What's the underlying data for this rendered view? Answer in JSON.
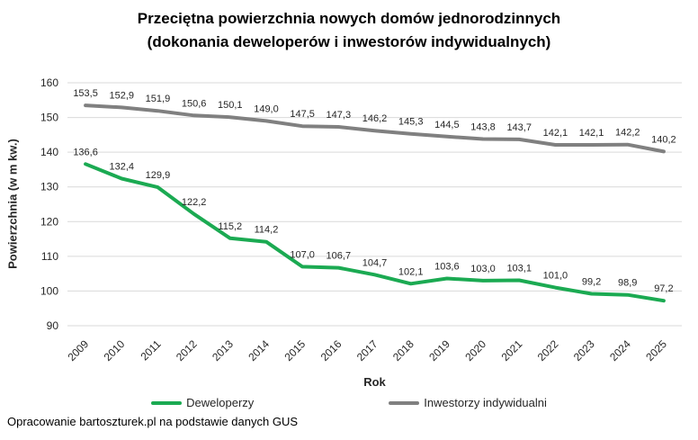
{
  "title": {
    "line1": "Przeciętna powierzchnia nowych domów jednorodzinnych",
    "line2": "(dokonania deweloperów i inwestorów indywidualnych)"
  },
  "footer": "Opracowanie bartoszturek.pl na podstawie danych GUS",
  "chart_data": {
    "type": "line",
    "x": [
      2009,
      2010,
      2011,
      2012,
      2013,
      2014,
      2015,
      2016,
      2017,
      2018,
      2019,
      2020,
      2021,
      2022,
      2023,
      2024,
      2025
    ],
    "series": [
      {
        "name": "Deweloperzy",
        "color": "#1BAA52",
        "values": [
          136.6,
          132.4,
          129.9,
          122.2,
          115.2,
          114.2,
          107.0,
          106.7,
          104.7,
          102.1,
          103.6,
          103.0,
          103.1,
          101.0,
          99.2,
          98.9,
          97.2
        ]
      },
      {
        "name": "Inwestorzy indywidualni",
        "color": "#808080",
        "values": [
          153.5,
          152.9,
          151.9,
          150.6,
          150.1,
          149.0,
          147.5,
          147.3,
          146.2,
          145.3,
          144.5,
          143.8,
          143.7,
          142.1,
          142.1,
          142.2,
          140.2
        ]
      }
    ],
    "xlabel": "Rok",
    "ylabel": "Powierzchnia (w m kw.)",
    "ylim": [
      90,
      160
    ],
    "ytick_step": 10,
    "grid": true,
    "gridline_color": "#d9d9d9",
    "legend_position": "bottom",
    "decimal_separator": ","
  }
}
